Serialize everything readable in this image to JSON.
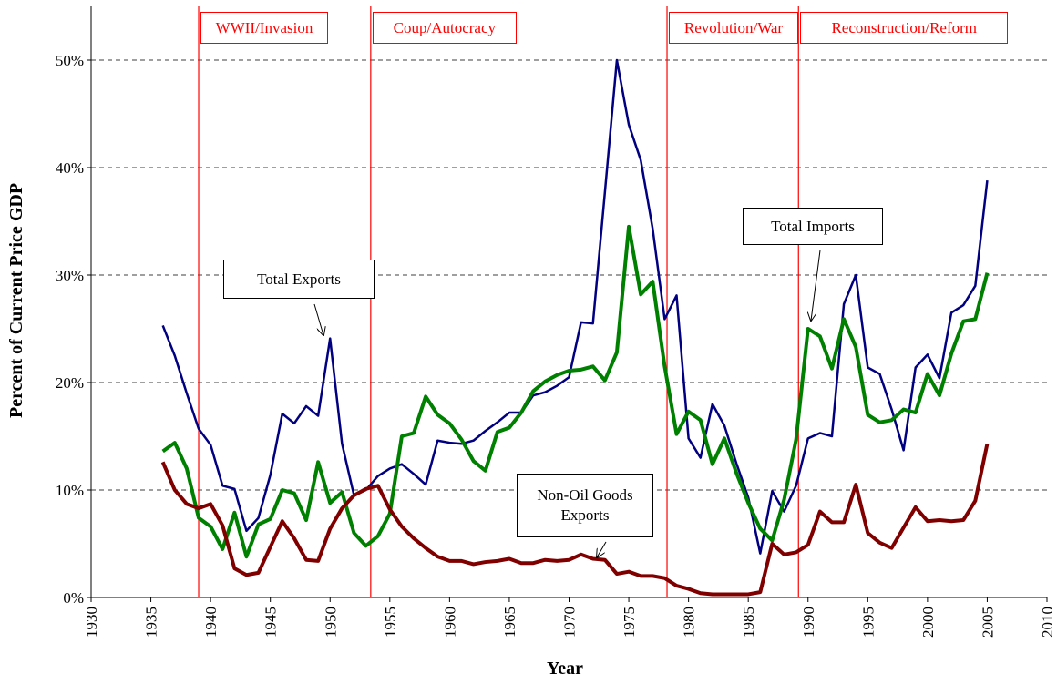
{
  "chart_data": {
    "type": "line",
    "x_label": "Year",
    "y_label": "Percent of Current Price GDP",
    "x": [
      1936,
      1937,
      1938,
      1939,
      1940,
      1941,
      1942,
      1943,
      1944,
      1945,
      1946,
      1947,
      1948,
      1949,
      1950,
      1951,
      1952,
      1953,
      1954,
      1955,
      1956,
      1957,
      1958,
      1959,
      1960,
      1961,
      1962,
      1963,
      1964,
      1965,
      1966,
      1967,
      1968,
      1969,
      1970,
      1971,
      1972,
      1973,
      1974,
      1975,
      1976,
      1977,
      1978,
      1979,
      1980,
      1981,
      1982,
      1983,
      1984,
      1985,
      1986,
      1987,
      1988,
      1989,
      1990,
      1991,
      1992,
      1993,
      1994,
      1995,
      1996,
      1997,
      1998,
      1999,
      2000,
      2001,
      2002,
      2003,
      2004,
      2005
    ],
    "xlim": [
      1930,
      2010
    ],
    "xticks": [
      1930,
      1935,
      1940,
      1945,
      1950,
      1955,
      1960,
      1965,
      1970,
      1975,
      1980,
      1985,
      1990,
      1995,
      2000,
      2005,
      2010
    ],
    "ylim": [
      0,
      55
    ],
    "yticks": [
      {
        "value": 0,
        "label": "0%"
      },
      {
        "value": 10,
        "label": "10%"
      },
      {
        "value": 20,
        "label": "20%"
      },
      {
        "value": 30,
        "label": "30%"
      },
      {
        "value": 40,
        "label": "40%"
      },
      {
        "value": 50,
        "label": "50%"
      }
    ],
    "grid": true,
    "series": [
      {
        "name": "Total Exports",
        "color": "#000080",
        "width": 2.5,
        "values": [
          25.3,
          22.5,
          19,
          15.7,
          14.2,
          10.4,
          10.1,
          6.2,
          7.4,
          11.4,
          17.1,
          16.2,
          17.8,
          16.9,
          24.1,
          14.3,
          9.5,
          10,
          11.3,
          12,
          12.4,
          11.5,
          10.5,
          14.6,
          14.4,
          14.3,
          14.6,
          15.5,
          16.3,
          17.2,
          17.2,
          18.8,
          19.1,
          19.7,
          20.5,
          25.6,
          25.5,
          37.7,
          50,
          44,
          40.7,
          34.3,
          25.9,
          28.1,
          14.8,
          13,
          18,
          16,
          12.5,
          9.3,
          4.1,
          9.9,
          8,
          10.4,
          14.8,
          15.3,
          15,
          27.3,
          30,
          21.4,
          20.8,
          17.5,
          13.7,
          21.4,
          22.6,
          20.4,
          26.5,
          27.2,
          29,
          38.8
        ]
      },
      {
        "name": "Total Imports",
        "color": "#008000",
        "width": 4,
        "values": [
          13.6,
          14.4,
          12,
          7.4,
          6.6,
          4.5,
          7.9,
          3.8,
          6.8,
          7.3,
          10,
          9.7,
          7.2,
          12.6,
          8.8,
          9.8,
          6,
          4.8,
          5.7,
          7.8,
          15,
          15.3,
          18.7,
          17,
          16.2,
          14.7,
          12.7,
          11.8,
          15.4,
          15.8,
          17.2,
          19.2,
          20.1,
          20.7,
          21.1,
          21.2,
          21.5,
          20.2,
          22.8,
          34.5,
          28.2,
          29.4,
          21.5,
          15.2,
          17.3,
          16.5,
          12.4,
          14.8,
          11.6,
          8.8,
          6.4,
          5.3,
          9.1,
          14.7,
          25,
          24.3,
          21.3,
          25.9,
          23.3,
          17,
          16.3,
          16.5,
          17.5,
          17.2,
          20.8,
          18.8,
          22.7,
          25.7,
          25.9,
          30.2
        ]
      },
      {
        "name": "Non-Oil Goods Exports",
        "color": "#800000",
        "width": 4,
        "values": [
          12.6,
          10,
          8.7,
          8.3,
          8.7,
          6.7,
          2.7,
          2.1,
          2.3,
          4.7,
          7.1,
          5.5,
          3.5,
          3.4,
          6.4,
          8.3,
          9.5,
          10.1,
          10.4,
          8.2,
          6.6,
          5.5,
          4.6,
          3.8,
          3.4,
          3.4,
          3.1,
          3.3,
          3.4,
          3.6,
          3.2,
          3.2,
          3.5,
          3.4,
          3.5,
          4,
          3.6,
          3.5,
          2.2,
          2.4,
          2,
          2,
          1.8,
          1.1,
          0.8,
          0.4,
          0.3,
          0.3,
          0.3,
          0.3,
          0.5,
          5,
          4,
          4.2,
          4.9,
          8,
          7,
          7,
          10.5,
          6,
          5.1,
          4.6,
          6.5,
          8.4,
          7.1,
          7.2,
          7.1,
          7.2,
          9,
          14.3
        ]
      }
    ],
    "events": [
      {
        "label": "WWII/Invasion",
        "year": 1939
      },
      {
        "label": "Coup/Autocracy",
        "year": 1953.4
      },
      {
        "label": "Revolution/War",
        "year": 1978.2
      },
      {
        "label": "Reconstruction/Reform",
        "year": 1989.2
      }
    ]
  }
}
